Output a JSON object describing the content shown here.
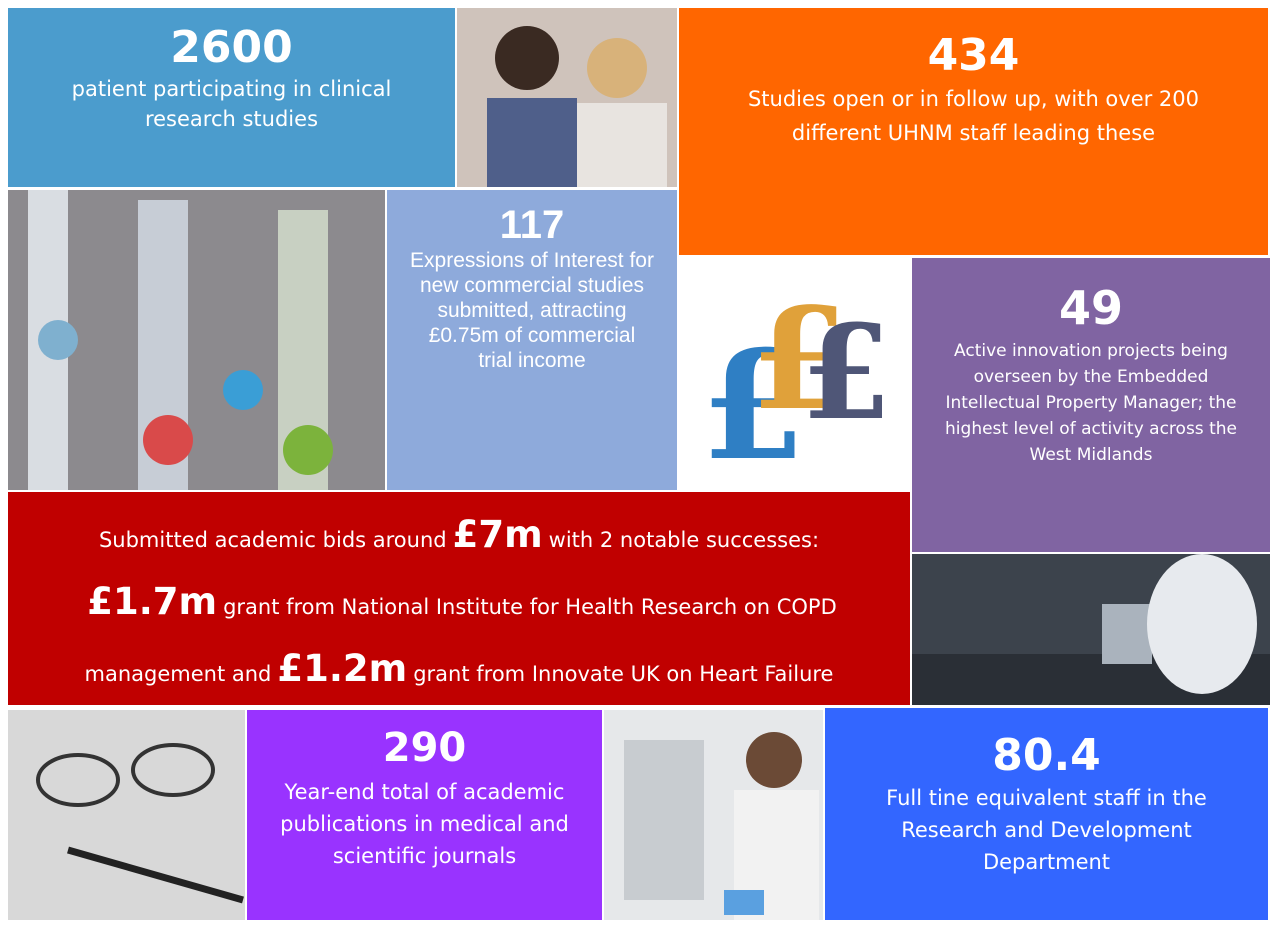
{
  "tiles": {
    "patients": {
      "number": "2600",
      "text": "patient participating in clinical research studies"
    },
    "studies": {
      "number": "434",
      "text": "Studies open or in follow up, with over 200 different UHNM staff leading these"
    },
    "expressions": {
      "number": "117",
      "text": "Expressions of Interest for new commercial studies submitted, attracting £0.75m of commercial trial income"
    },
    "innovation": {
      "number": "49",
      "text": "Active innovation projects being overseen by the Embedded Intellectual Property Manager; the highest level of activity across the West Midlands"
    },
    "bids": {
      "lines": [
        [
          "Submitted academic bids around",
          "£7m",
          "with 2 notable successes:"
        ],
        [
          "£1.7m",
          "grant from National Institute for Health Research on COPD"
        ],
        [
          "management and",
          "£1.2m",
          "grant from Innovate UK on Heart Failure"
        ]
      ]
    },
    "publications": {
      "number": "290",
      "text": "Year-end total of academic publications in medical and scientific journals"
    },
    "staff": {
      "number": "80.4",
      "text": "Full tine equivalent staff in the Research and Development Department"
    }
  }
}
